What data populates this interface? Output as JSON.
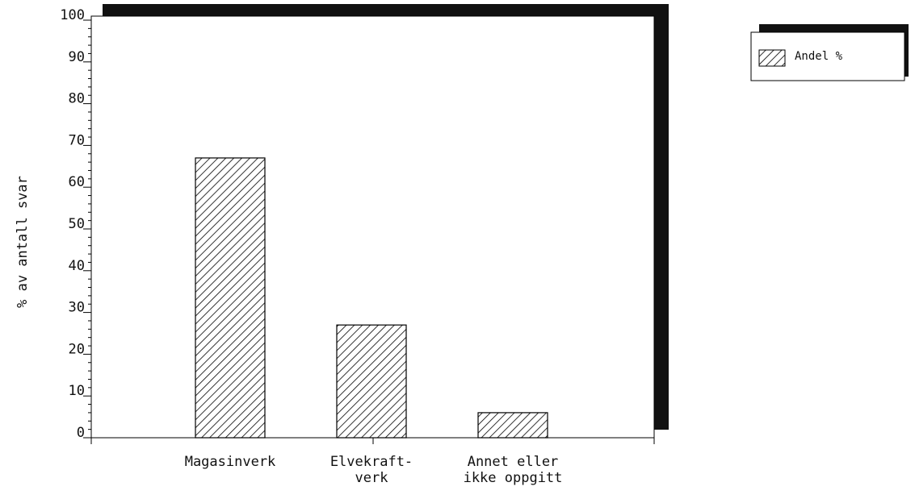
{
  "chart_data": {
    "type": "bar",
    "y_label": "% av antall svar",
    "categories": [
      [
        "Magasinverk"
      ],
      [
        "Elvekraft-",
        "verk"
      ],
      [
        "Annet eller",
        "ikke oppgitt"
      ]
    ],
    "series": [
      {
        "name": "Andel %",
        "color": "#000000",
        "values": [
          67,
          27,
          6
        ]
      }
    ],
    "ylim": [
      0,
      100
    ],
    "yticks": [
      0,
      10,
      20,
      30,
      40,
      50,
      60,
      70,
      80,
      90,
      100
    ],
    "legend": "top-right"
  }
}
